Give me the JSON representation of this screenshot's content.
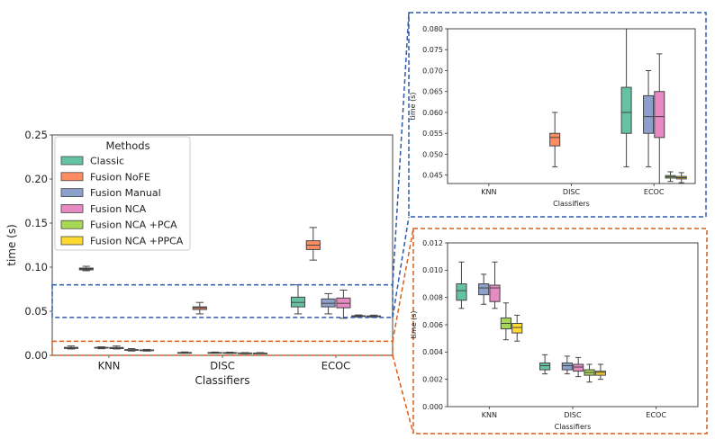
{
  "chart_data": [
    {
      "type": "box",
      "panel": "main",
      "xlabel": "Classifiers",
      "ylabel": "time (s)",
      "ylim": [
        0,
        0.25
      ],
      "yticks": [
        "0.00",
        "0.05",
        "0.10",
        "0.15",
        "0.20",
        "0.25"
      ],
      "categories": [
        "KNN",
        "DISC",
        "ECOC"
      ],
      "legend": {
        "title": "Methods",
        "placement": "upper-left",
        "entries": [
          "Classic",
          "Fusion NoFE",
          "Fusion Manual",
          "Fusion NCA",
          "Fusion NCA +PCA",
          "Fusion NCA +PPCA"
        ]
      },
      "series": [
        {
          "name": "Classic",
          "color": "#66c2a5",
          "boxes": [
            [
              0.0072,
              0.0078,
              0.0085,
              0.009,
              0.0106
            ],
            [
              0.0024,
              0.0027,
              0.003,
              0.0032,
              0.0038
            ],
            [
              0.047,
              0.055,
              0.06,
              0.066,
              0.08
            ]
          ]
        },
        {
          "name": "Fusion NoFE",
          "color": "#fc8d62",
          "boxes": [
            [
              0.096,
              0.097,
              0.098,
              0.099,
              0.101
            ],
            [
              0.047,
              0.052,
              0.054,
              0.055,
              0.06
            ],
            [
              0.108,
              0.12,
              0.125,
              0.13,
              0.145
            ]
          ]
        },
        {
          "name": "Fusion Manual",
          "color": "#8da0cb",
          "boxes": [
            [
              0.0075,
              0.0082,
              0.0087,
              0.009,
              0.0097
            ],
            [
              0.0024,
              0.0027,
              0.003,
              0.0032,
              0.0037
            ],
            [
              0.047,
              0.055,
              0.059,
              0.064,
              0.07
            ]
          ]
        },
        {
          "name": "Fusion NCA",
          "color": "#e78ac3",
          "boxes": [
            [
              0.0072,
              0.0077,
              0.0087,
              0.0089,
              0.0106
            ],
            [
              0.0022,
              0.0026,
              0.0029,
              0.0031,
              0.0036
            ],
            [
              0.042,
              0.054,
              0.059,
              0.065,
              0.074
            ]
          ]
        },
        {
          "name": "Fusion NCA +PCA",
          "color": "#a6d854",
          "boxes": [
            [
              0.0049,
              0.0057,
              0.0061,
              0.0065,
              0.0076
            ],
            [
              0.0018,
              0.0023,
              0.0025,
              0.0027,
              0.0031
            ],
            [
              0.0435,
              0.0443,
              0.0446,
              0.0449,
              0.0458
            ]
          ]
        },
        {
          "name": "Fusion NCA +PPCA",
          "color": "#ffd92f",
          "boxes": [
            [
              0.0048,
              0.0054,
              0.0058,
              0.0061,
              0.0067
            ],
            [
              0.002,
              0.0023,
              0.0025,
              0.0026,
              0.0031
            ],
            [
              0.0432,
              0.0441,
              0.0444,
              0.0447,
              0.0456
            ]
          ]
        }
      ]
    },
    {
      "type": "box",
      "panel": "zoom-top",
      "xlabel": "Classifiers",
      "ylabel": "time (s)",
      "ylim": [
        0.043,
        0.08
      ],
      "yticks": [
        "0.045",
        "0.050",
        "0.055",
        "0.060",
        "0.065",
        "0.070",
        "0.075",
        "0.080"
      ],
      "categories": [
        "KNN",
        "DISC",
        "ECOC"
      ]
    },
    {
      "type": "box",
      "panel": "zoom-bottom",
      "xlabel": "Classifiers",
      "ylabel": "time (s)",
      "ylim": [
        0,
        0.012
      ],
      "yticks": [
        "0.000",
        "0.002",
        "0.004",
        "0.006",
        "0.008",
        "0.010",
        "0.012"
      ],
      "categories": [
        "KNN",
        "DISC",
        "ECOC"
      ]
    }
  ],
  "colors": {
    "blue_zoom": "#2e5aa8",
    "orange_zoom": "#d65f1e",
    "median": "#444444"
  }
}
